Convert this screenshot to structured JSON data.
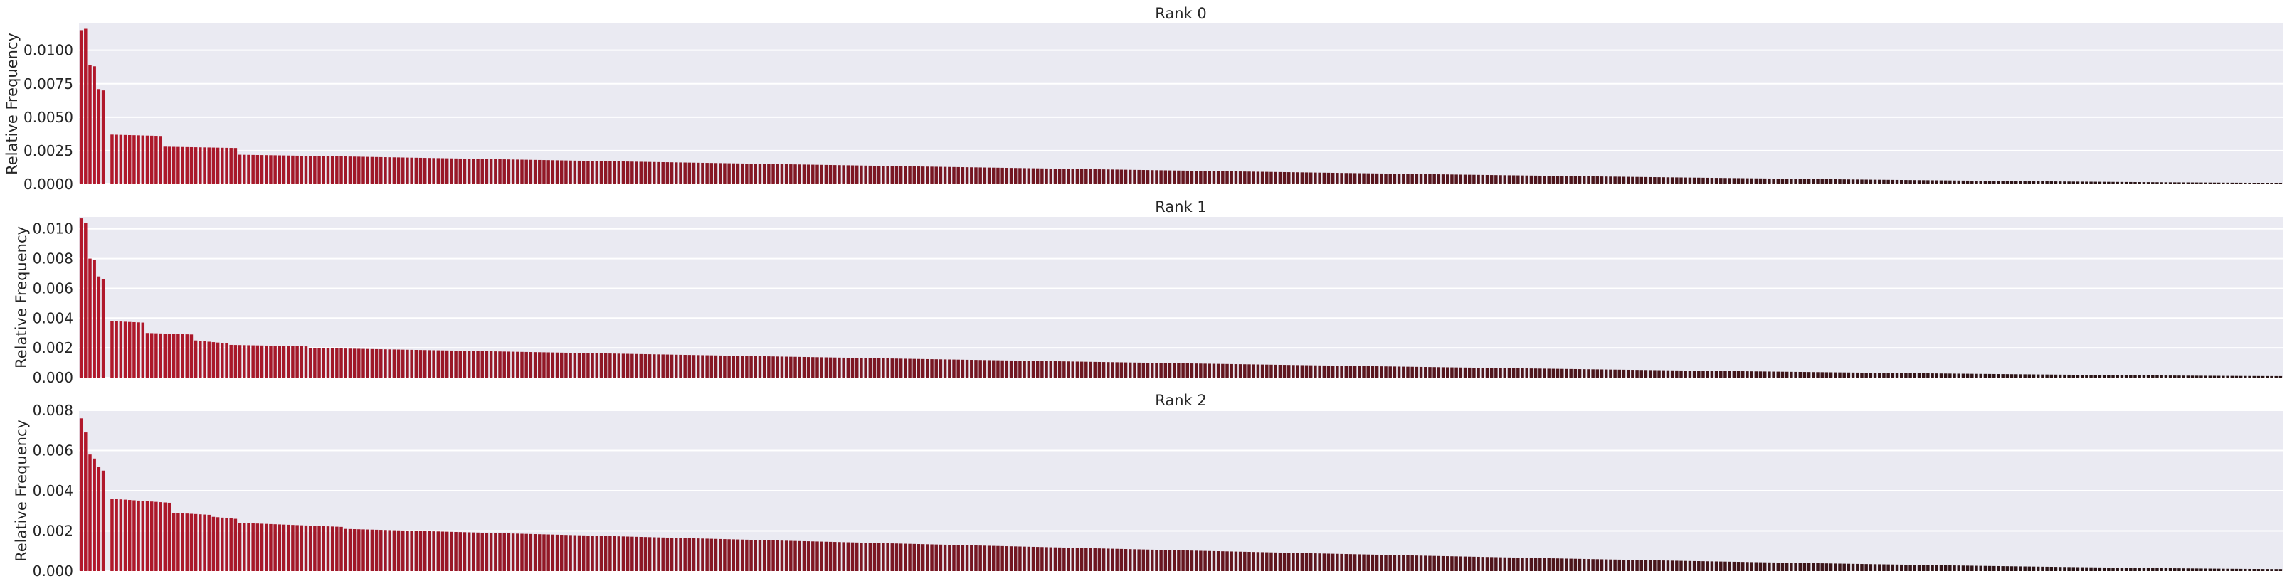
{
  "chart_data": [
    {
      "type": "bar",
      "title": "Rank 0",
      "xlabel": "",
      "ylabel": "Relative Frequency",
      "ylim": [
        0,
        0.012
      ],
      "yticks": [
        0.0,
        0.0025,
        0.005,
        0.0075,
        0.01
      ],
      "ytick_labels": [
        "0.0000",
        "0.0025",
        "0.0050",
        "0.0075",
        "0.0100"
      ],
      "grid": true,
      "bar_count": 500,
      "profile": {
        "head_values": [
          0.0115,
          0.0116,
          0.0089,
          0.0088,
          0.0071,
          0.007
        ],
        "plateaus": [
          [
            7,
            0.0037,
            0.0036
          ],
          [
            19,
            0.0028,
            0.0027
          ],
          [
            36,
            0.0022,
            0.0021
          ]
        ],
        "decay_start_index": 55,
        "decay_start_value": 0.0021,
        "end_value": 0.0001
      }
    },
    {
      "type": "bar",
      "title": "Rank 1",
      "xlabel": "",
      "ylabel": "Relative Frequency",
      "ylim": [
        0,
        0.0108
      ],
      "yticks": [
        0.0,
        0.002,
        0.004,
        0.006,
        0.008,
        0.01
      ],
      "ytick_labels": [
        "0.000",
        "0.002",
        "0.004",
        "0.006",
        "0.008",
        "0.010"
      ],
      "grid": true,
      "bar_count": 500,
      "profile": {
        "head_values": [
          0.0107,
          0.0104,
          0.008,
          0.0079,
          0.0068,
          0.0066
        ],
        "plateaus": [
          [
            7,
            0.0038,
            0.0037
          ],
          [
            15,
            0.003,
            0.0029
          ],
          [
            26,
            0.0025,
            0.0023
          ],
          [
            34,
            0.0022,
            0.0021
          ]
        ],
        "decay_start_index": 52,
        "decay_start_value": 0.002,
        "end_value": 0.0001
      }
    },
    {
      "type": "bar",
      "title": "Rank 2",
      "xlabel": "",
      "ylabel": "Relative Frequency",
      "ylim": [
        0,
        0.008
      ],
      "yticks": [
        0.0,
        0.002,
        0.004,
        0.006,
        0.008
      ],
      "ytick_labels": [
        "0.000",
        "0.002",
        "0.004",
        "0.006",
        "0.008"
      ],
      "grid": true,
      "bar_count": 500,
      "profile": {
        "head_values": [
          0.0076,
          0.0069,
          0.0058,
          0.0056,
          0.0052,
          0.005
        ],
        "plateaus": [
          [
            7,
            0.0036,
            0.0034
          ],
          [
            21,
            0.0029,
            0.0028
          ],
          [
            30,
            0.0027,
            0.0026
          ],
          [
            36,
            0.0024,
            0.0022
          ]
        ],
        "decay_start_index": 60,
        "decay_start_value": 0.0021,
        "end_value": 0.0001
      }
    }
  ],
  "colors": {
    "plot_background": "#eaeaf2",
    "grid": "#ffffff",
    "bar_head": "#b2182b",
    "bar_tail": "#2a1416",
    "text": "#262626"
  }
}
